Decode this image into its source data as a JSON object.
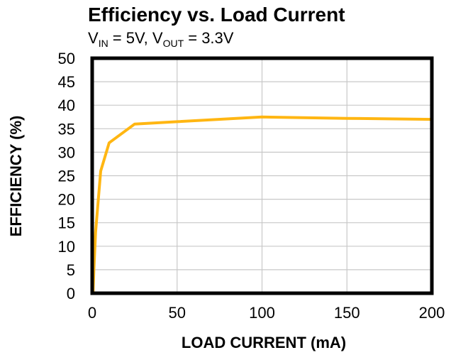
{
  "chart_data": {
    "type": "line",
    "title": "Efficiency vs. Load Current",
    "subtitle": {
      "v_in_main": "V",
      "v_in_sub": "IN",
      "v_in_value": " = 5V, ",
      "v_out_main": "V",
      "v_out_sub": "OUT",
      "v_out_value": " = 3.3V"
    },
    "xlabel": "LOAD CURRENT (mA)",
    "ylabel": "EFFICIENCY (%)",
    "xlim": [
      0,
      200
    ],
    "ylim": [
      0,
      50
    ],
    "x_ticks": [
      0,
      50,
      100,
      150,
      200
    ],
    "y_ticks": [
      0,
      5,
      10,
      15,
      20,
      25,
      30,
      35,
      40,
      45,
      50
    ],
    "grid": true,
    "series": [
      {
        "color": "#FFB612",
        "x": [
          0.5,
          1,
          2,
          5,
          10,
          25,
          50,
          100,
          150,
          200
        ],
        "y": [
          0,
          5,
          13,
          26,
          32,
          36,
          36.5,
          37.5,
          37.2,
          37
        ]
      }
    ]
  }
}
